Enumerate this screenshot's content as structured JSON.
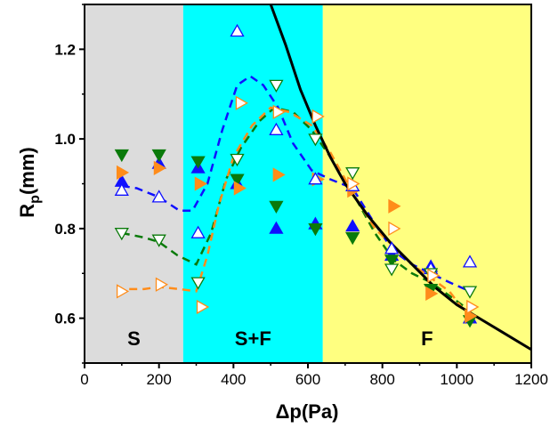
{
  "chart_data": {
    "type": "scatter",
    "title": "",
    "xlabel": "Δp(Pa)",
    "ylabel_main": "R",
    "ylabel_sub": "p",
    "ylabel_unit": "(mm)",
    "xlim": [
      0,
      1200
    ],
    "ylim": [
      0.5,
      1.3
    ],
    "xticks": [
      0,
      200,
      400,
      600,
      800,
      1000,
      1200
    ],
    "yticks": [
      0.6,
      0.8,
      1.0,
      1.2
    ],
    "xtick_labels": [
      "0",
      "200",
      "400",
      "600",
      "800",
      "1000",
      "1200"
    ],
    "ytick_labels": [
      "0.6",
      "0.8",
      "1.0",
      "1.2"
    ],
    "grid": false,
    "regions": [
      {
        "label": "S",
        "x0": 0,
        "x1": 265,
        "color": "#dcdcdc"
      },
      {
        "label": "S+F",
        "x0": 265,
        "x1": 640,
        "color": "#00ffff"
      },
      {
        "label": "F",
        "x0": 640,
        "x1": 1200,
        "color": "#ffff80"
      }
    ],
    "series": [
      {
        "marker": "up-filled",
        "color": "#1010ff",
        "x": [
          100,
          200,
          305,
          410,
          515,
          620,
          720,
          825,
          930,
          1035
        ],
        "y": [
          0.905,
          0.945,
          0.935,
          0.9,
          0.8,
          0.81,
          0.805,
          0.74,
          0.715,
          0.6
        ]
      },
      {
        "marker": "down-filled",
        "color": "#0a7a0a",
        "x": [
          100,
          200,
          305,
          410,
          515,
          620,
          720,
          825,
          930,
          1035
        ],
        "y": [
          0.965,
          0.965,
          0.95,
          0.91,
          0.85,
          0.8,
          0.78,
          0.73,
          0.665,
          0.595
        ]
      },
      {
        "marker": "right-filled",
        "color": "#ff8c1a",
        "x": [
          100,
          200,
          310,
          415,
          520,
          625,
          720,
          830,
          930,
          1035
        ],
        "y": [
          0.925,
          0.935,
          0.9,
          0.89,
          0.92,
          0.91,
          0.885,
          0.85,
          0.655,
          0.605
        ]
      },
      {
        "marker": "up-open",
        "color": "#1010ff",
        "x": [
          100,
          200,
          305,
          410,
          515,
          620,
          720,
          825,
          930,
          1035
        ],
        "y": [
          0.885,
          0.87,
          0.79,
          1.24,
          1.02,
          0.91,
          0.895,
          0.755,
          0.71,
          0.725
        ]
      },
      {
        "marker": "down-open",
        "color": "#0a7a0a",
        "x": [
          100,
          200,
          305,
          410,
          515,
          620,
          720,
          825,
          930,
          1035
        ],
        "y": [
          0.79,
          0.775,
          0.68,
          0.955,
          1.12,
          1.0,
          0.925,
          0.71,
          0.7,
          0.66
        ]
      },
      {
        "marker": "right-open",
        "color": "#ff8c1a",
        "x": [
          100,
          205,
          315,
          420,
          520,
          625,
          720,
          830,
          935,
          1040
        ],
        "y": [
          0.66,
          0.675,
          0.625,
          1.08,
          1.06,
          1.05,
          0.9,
          0.8,
          0.695,
          0.625
        ]
      }
    ],
    "trend_lines": [
      {
        "color": "#1010ff",
        "style": "dashed",
        "x": [
          100,
          140,
          200,
          255,
          290,
          330,
          370,
          410,
          445,
          480,
          520,
          560,
          610,
          660,
          720,
          780,
          830,
          880,
          930,
          980,
          1035
        ],
        "y": [
          0.895,
          0.89,
          0.87,
          0.84,
          0.84,
          0.9,
          1.02,
          1.12,
          1.14,
          1.12,
          1.07,
          0.99,
          0.93,
          0.91,
          0.89,
          0.81,
          0.75,
          0.72,
          0.7,
          0.68,
          0.66
        ]
      },
      {
        "color": "#0a7a0a",
        "style": "dashed",
        "x": [
          100,
          160,
          200,
          250,
          300,
          340,
          380,
          420,
          470,
          510,
          560,
          610,
          660,
          720,
          780,
          830,
          880,
          930,
          980,
          1030
        ],
        "y": [
          0.79,
          0.78,
          0.77,
          0.74,
          0.72,
          0.79,
          0.91,
          0.98,
          1.04,
          1.07,
          1.06,
          1.02,
          0.96,
          0.88,
          0.79,
          0.73,
          0.7,
          0.68,
          0.65,
          0.62
        ]
      },
      {
        "color": "#ff8c1a",
        "style": "dashed",
        "x": [
          120,
          160,
          200,
          255,
          300,
          330,
          360,
          400,
          450,
          500,
          550,
          610,
          660,
          720,
          780,
          830,
          880,
          930,
          980,
          1035
        ],
        "y": [
          0.665,
          0.665,
          0.67,
          0.665,
          0.66,
          0.74,
          0.85,
          0.96,
          1.03,
          1.07,
          1.06,
          1.03,
          0.97,
          0.88,
          0.8,
          0.76,
          0.72,
          0.69,
          0.66,
          0.6
        ]
      }
    ],
    "fit_curve": {
      "color": "#000000",
      "style": "solid",
      "x": [
        500,
        540,
        580,
        620,
        660,
        700,
        760,
        820,
        880,
        940,
        1000,
        1060,
        1120,
        1200
      ],
      "y": [
        1.3,
        1.21,
        1.11,
        1.03,
        0.96,
        0.9,
        0.83,
        0.77,
        0.72,
        0.67,
        0.63,
        0.6,
        0.57,
        0.53
      ]
    }
  }
}
